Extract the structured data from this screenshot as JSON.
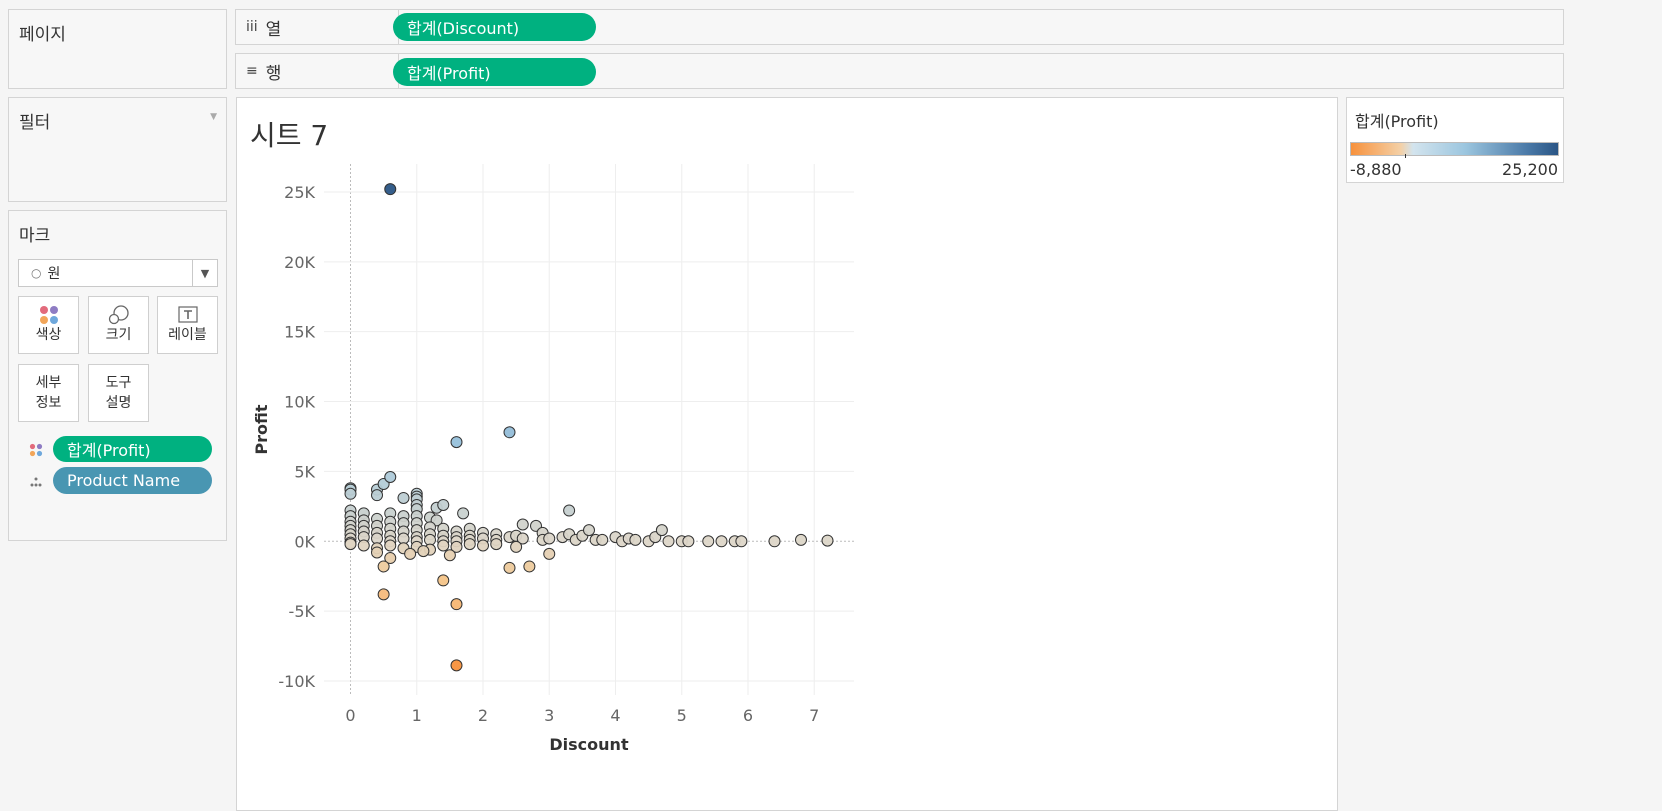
{
  "pages_panel": {
    "title": "페이지"
  },
  "filters_panel": {
    "title": "필터"
  },
  "marks_panel": {
    "title": "마크",
    "mark_type": "원",
    "cards": {
      "color": "색상",
      "size": "크기",
      "label": "레이블",
      "detail": "세부\n정보",
      "tooltip": "도구\n설명"
    },
    "pills": {
      "color_field": "합계(Profit)",
      "detail_field": "Product Name"
    }
  },
  "shelves": {
    "columns": {
      "label": "열",
      "pill": "합계(Discount)"
    },
    "rows": {
      "label": "행",
      "pill": "합계(Profit)"
    }
  },
  "sheet": {
    "title": "시트 7"
  },
  "legend": {
    "title": "합계(Profit)",
    "min": "-8,880",
    "max": "25,200"
  },
  "colors": {
    "pill_green": "#00b180",
    "pill_blue": "#4996b2",
    "neg": "#f7913c",
    "pos": "#2a5585",
    "mid": "#ddd6c8"
  },
  "chart_data": {
    "type": "scatter",
    "xlabel": "Discount",
    "ylabel": "Profit",
    "xlim": [
      -0.4,
      7.6
    ],
    "ylim": [
      -11000,
      27000
    ],
    "xticks": [
      0,
      1,
      2,
      3,
      4,
      5,
      6,
      7
    ],
    "yticks": [
      -10000,
      -5000,
      0,
      5000,
      10000,
      15000,
      20000,
      25000
    ],
    "ytick_labels": [
      "-10K",
      "-5K",
      "0K",
      "5K",
      "10K",
      "15K",
      "20K",
      "25K"
    ],
    "grid": true,
    "points": [
      [
        0.6,
        25200
      ],
      [
        1.6,
        7100
      ],
      [
        2.4,
        7800
      ],
      [
        3.3,
        2200
      ],
      [
        0.0,
        3800
      ],
      [
        0.0,
        3700
      ],
      [
        0.0,
        3400
      ],
      [
        0.4,
        3700
      ],
      [
        0.4,
        3300
      ],
      [
        0.5,
        4100
      ],
      [
        0.6,
        4600
      ],
      [
        0.8,
        3100
      ],
      [
        1.0,
        3400
      ],
      [
        1.0,
        3200
      ],
      [
        1.0,
        3000
      ],
      [
        1.0,
        2600
      ],
      [
        1.0,
        2300
      ],
      [
        1.3,
        2400
      ],
      [
        1.4,
        2600
      ],
      [
        1.7,
        2000
      ],
      [
        1.2,
        1700
      ],
      [
        1.3,
        1500
      ],
      [
        0.0,
        2200
      ],
      [
        0.0,
        1800
      ],
      [
        0.0,
        1400
      ],
      [
        0.0,
        1100
      ],
      [
        0.0,
        800
      ],
      [
        0.0,
        500
      ],
      [
        0.0,
        200
      ],
      [
        0.0,
        -100
      ],
      [
        0.2,
        2000
      ],
      [
        0.2,
        1500
      ],
      [
        0.2,
        1100
      ],
      [
        0.2,
        700
      ],
      [
        0.2,
        300
      ],
      [
        0.4,
        1600
      ],
      [
        0.4,
        1100
      ],
      [
        0.4,
        600
      ],
      [
        0.4,
        200
      ],
      [
        0.6,
        2000
      ],
      [
        0.6,
        1400
      ],
      [
        0.6,
        900
      ],
      [
        0.6,
        400
      ],
      [
        0.6,
        0
      ],
      [
        0.8,
        1800
      ],
      [
        0.8,
        1300
      ],
      [
        0.8,
        700
      ],
      [
        0.8,
        200
      ],
      [
        1.0,
        1800
      ],
      [
        1.0,
        1300
      ],
      [
        1.0,
        800
      ],
      [
        1.0,
        300
      ],
      [
        1.0,
        0
      ],
      [
        1.2,
        1000
      ],
      [
        1.2,
        500
      ],
      [
        1.2,
        100
      ],
      [
        1.4,
        900
      ],
      [
        1.4,
        400
      ],
      [
        1.4,
        0
      ],
      [
        1.6,
        700
      ],
      [
        1.6,
        300
      ],
      [
        1.6,
        0
      ],
      [
        1.8,
        900
      ],
      [
        1.8,
        400
      ],
      [
        1.8,
        100
      ],
      [
        2.0,
        600
      ],
      [
        2.0,
        200
      ],
      [
        2.2,
        500
      ],
      [
        2.2,
        100
      ],
      [
        2.4,
        300
      ],
      [
        2.5,
        400
      ],
      [
        2.6,
        1200
      ],
      [
        2.6,
        200
      ],
      [
        2.8,
        1100
      ],
      [
        2.9,
        600
      ],
      [
        2.9,
        100
      ],
      [
        3.0,
        200
      ],
      [
        3.2,
        300
      ],
      [
        3.3,
        500
      ],
      [
        3.4,
        100
      ],
      [
        3.5,
        400
      ],
      [
        3.6,
        800
      ],
      [
        3.7,
        100
      ],
      [
        3.8,
        100
      ],
      [
        4.0,
        300
      ],
      [
        4.1,
        0
      ],
      [
        4.2,
        200
      ],
      [
        4.3,
        100
      ],
      [
        4.5,
        0
      ],
      [
        4.6,
        300
      ],
      [
        4.7,
        800
      ],
      [
        4.8,
        0
      ],
      [
        5.0,
        0
      ],
      [
        5.1,
        0
      ],
      [
        5.4,
        0
      ],
      [
        5.6,
        0
      ],
      [
        5.8,
        0
      ],
      [
        5.9,
        0
      ],
      [
        6.4,
        0
      ],
      [
        6.8,
        100
      ],
      [
        7.2,
        50
      ],
      [
        0.0,
        -200
      ],
      [
        0.2,
        -300
      ],
      [
        0.4,
        -500
      ],
      [
        0.6,
        -300
      ],
      [
        0.8,
        -500
      ],
      [
        1.0,
        -400
      ],
      [
        1.2,
        -600
      ],
      [
        1.4,
        -300
      ],
      [
        1.6,
        -400
      ],
      [
        1.8,
        -200
      ],
      [
        2.0,
        -300
      ],
      [
        2.2,
        -200
      ],
      [
        2.5,
        -400
      ],
      [
        0.4,
        -800
      ],
      [
        0.6,
        -1200
      ],
      [
        0.9,
        -900
      ],
      [
        1.1,
        -700
      ],
      [
        1.5,
        -1000
      ],
      [
        0.5,
        -1800
      ],
      [
        0.5,
        -3800
      ],
      [
        1.4,
        -2800
      ],
      [
        2.4,
        -1900
      ],
      [
        2.7,
        -1800
      ],
      [
        3.0,
        -900
      ],
      [
        1.6,
        -4500
      ],
      [
        1.6,
        -8880
      ]
    ]
  }
}
